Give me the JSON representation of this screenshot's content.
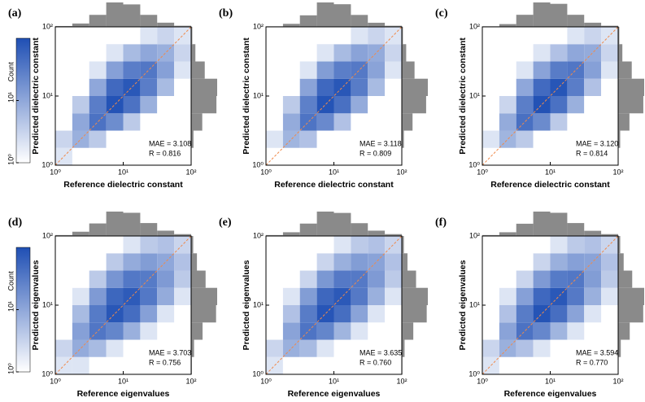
{
  "chart_data": [
    {
      "type": "hist2d",
      "label": "(a)",
      "xlabel": "Reference dielectric constant",
      "ylabel": "Predicted dielectric constant",
      "annotations": [
        "MAE = 3.108",
        "R = 0.816"
      ],
      "log": true,
      "xlim": [
        1,
        100
      ],
      "ylim": [
        1,
        100
      ],
      "xticks": [
        {
          "value": 1,
          "label": "10⁰"
        },
        {
          "value": 10,
          "label": "10¹"
        },
        {
          "value": 100,
          "label": "10²"
        }
      ],
      "yticks": [
        {
          "value": 1,
          "label": "10⁰"
        },
        {
          "value": 10,
          "label": "10¹"
        },
        {
          "value": 100,
          "label": "10²"
        }
      ],
      "bins": [
        1,
        1.78,
        3.16,
        5.62,
        10,
        17.8,
        31.6,
        56.2,
        100
      ],
      "counts": [
        [
          2,
          1,
          0,
          0,
          0,
          0,
          0,
          0
        ],
        [
          3,
          8,
          4,
          1,
          0,
          0,
          0,
          0
        ],
        [
          1,
          10,
          40,
          20,
          4,
          1,
          0,
          0
        ],
        [
          0,
          4,
          30,
          90,
          40,
          8,
          1,
          0
        ],
        [
          0,
          1,
          10,
          50,
          80,
          30,
          6,
          1
        ],
        [
          0,
          0,
          2,
          12,
          30,
          35,
          12,
          2
        ],
        [
          0,
          0,
          0,
          2,
          6,
          10,
          8,
          3
        ],
        [
          0,
          0,
          0,
          0,
          1,
          2,
          3,
          2
        ]
      ],
      "x_counts": [
        6,
        24,
        86,
        175,
        161,
        86,
        30,
        8
      ],
      "y_counts": [
        3,
        16,
        76,
        173,
        178,
        93,
        29,
        8
      ],
      "cmap": [
        "#ffffff",
        "#1f4fb4"
      ],
      "hist_color": "#8a8a8a",
      "line_color": "#f08a4b",
      "colorbar": {
        "label": "Count",
        "lim": [
          1,
          100
        ],
        "ticks": [
          {
            "value": 1,
            "label": "10⁰"
          },
          {
            "value": 10,
            "label": "10¹"
          }
        ]
      }
    },
    {
      "type": "hist2d",
      "label": "(b)",
      "xlabel": "Reference dielectric constant",
      "ylabel": "Predicted dielectric constant",
      "annotations": [
        "MAE = 3.118",
        "R = 0.809"
      ],
      "log": true,
      "xlim": [
        1,
        100
      ],
      "ylim": [
        1,
        100
      ],
      "xticks": [
        {
          "value": 1,
          "label": "10⁰"
        },
        {
          "value": 10,
          "label": "10¹"
        },
        {
          "value": 100,
          "label": "10²"
        }
      ],
      "yticks": [
        {
          "value": 1,
          "label": "10⁰"
        },
        {
          "value": 10,
          "label": "10¹"
        },
        {
          "value": 100,
          "label": "10²"
        }
      ],
      "bins": [
        1,
        1.78,
        3.16,
        5.62,
        10,
        17.8,
        31.6,
        56.2,
        100
      ],
      "counts": [
        [
          1,
          1,
          0,
          0,
          0,
          0,
          0,
          0
        ],
        [
          2,
          7,
          5,
          1,
          0,
          0,
          0,
          0
        ],
        [
          1,
          9,
          38,
          22,
          5,
          1,
          0,
          0
        ],
        [
          0,
          4,
          28,
          88,
          42,
          9,
          1,
          0
        ],
        [
          0,
          1,
          11,
          52,
          82,
          31,
          6,
          1
        ],
        [
          0,
          0,
          2,
          13,
          29,
          33,
          11,
          2
        ],
        [
          0,
          0,
          0,
          2,
          6,
          11,
          9,
          3
        ],
        [
          0,
          0,
          0,
          0,
          1,
          2,
          3,
          2
        ]
      ],
      "x_counts": [
        4,
        22,
        84,
        178,
        165,
        87,
        30,
        8
      ],
      "y_counts": [
        2,
        15,
        76,
        172,
        184,
        90,
        31,
        8
      ],
      "cmap": [
        "#ffffff",
        "#1f4fb4"
      ],
      "hist_color": "#8a8a8a",
      "line_color": "#f08a4b"
    },
    {
      "type": "hist2d",
      "label": "(c)",
      "xlabel": "Reference dielectric constant",
      "ylabel": "Predicted dielectric constant",
      "annotations": [
        "MAE = 3.120",
        "R = 0.814"
      ],
      "log": true,
      "xlim": [
        1,
        100
      ],
      "ylim": [
        1,
        100
      ],
      "xticks": [
        {
          "value": 1,
          "label": "10⁰"
        },
        {
          "value": 10,
          "label": "10¹"
        },
        {
          "value": 100,
          "label": "10²"
        }
      ],
      "yticks": [
        {
          "value": 1,
          "label": "10⁰"
        },
        {
          "value": 10,
          "label": "10¹"
        },
        {
          "value": 100,
          "label": "10²"
        }
      ],
      "bins": [
        1,
        1.78,
        3.16,
        5.62,
        10,
        17.8,
        31.6,
        56.2,
        100
      ],
      "counts": [
        [
          1,
          0,
          0,
          0,
          0,
          0,
          0,
          0
        ],
        [
          2,
          7,
          4,
          1,
          0,
          0,
          0,
          0
        ],
        [
          1,
          9,
          42,
          21,
          4,
          1,
          0,
          0
        ],
        [
          0,
          3,
          29,
          92,
          41,
          8,
          1,
          0
        ],
        [
          0,
          1,
          10,
          49,
          84,
          30,
          5,
          1
        ],
        [
          0,
          0,
          2,
          11,
          31,
          36,
          12,
          2
        ],
        [
          0,
          0,
          0,
          2,
          5,
          10,
          9,
          3
        ],
        [
          0,
          0,
          0,
          0,
          1,
          2,
          3,
          2
        ]
      ],
      "x_counts": [
        4,
        20,
        87,
        176,
        166,
        87,
        30,
        8
      ],
      "y_counts": [
        1,
        14,
        78,
        174,
        180,
        94,
        29,
        8
      ],
      "cmap": [
        "#ffffff",
        "#1f4fb4"
      ],
      "hist_color": "#8a8a8a",
      "line_color": "#f08a4b"
    },
    {
      "type": "hist2d",
      "label": "(d)",
      "xlabel": "Reference eigenvalues",
      "ylabel": "Predicted eigenvalues",
      "annotations": [
        "MAE = 3.703",
        "R = 0.756"
      ],
      "log": true,
      "xlim": [
        1,
        100
      ],
      "ylim": [
        1,
        100
      ],
      "xticks": [
        {
          "value": 1,
          "label": "10⁰"
        },
        {
          "value": 10,
          "label": "10¹"
        },
        {
          "value": 100,
          "label": "10²"
        }
      ],
      "yticks": [
        {
          "value": 1,
          "label": "10⁰"
        },
        {
          "value": 10,
          "label": "10¹"
        },
        {
          "value": 100,
          "label": "10²"
        }
      ],
      "bins": [
        1,
        1.78,
        3.16,
        5.62,
        10,
        17.8,
        31.6,
        56.2,
        100
      ],
      "counts": [
        [
          2,
          2,
          1,
          0,
          0,
          0,
          0,
          0
        ],
        [
          3,
          9,
          6,
          2,
          1,
          0,
          0,
          0
        ],
        [
          1,
          12,
          36,
          24,
          8,
          2,
          0,
          0
        ],
        [
          1,
          6,
          32,
          82,
          46,
          12,
          2,
          0
        ],
        [
          0,
          2,
          14,
          54,
          74,
          34,
          9,
          2
        ],
        [
          0,
          1,
          4,
          16,
          34,
          32,
          14,
          4
        ],
        [
          0,
          0,
          1,
          4,
          9,
          13,
          10,
          5
        ],
        [
          0,
          0,
          0,
          1,
          2,
          4,
          5,
          3
        ]
      ],
      "x_counts": [
        7,
        32,
        94,
        183,
        174,
        97,
        40,
        14
      ],
      "y_counts": [
        5,
        21,
        83,
        181,
        189,
        105,
        42,
        15
      ],
      "cmap": [
        "#ffffff",
        "#1f4fb4"
      ],
      "hist_color": "#8a8a8a",
      "line_color": "#f08a4b",
      "colorbar": {
        "label": "Count",
        "lim": [
          1,
          100
        ],
        "ticks": [
          {
            "value": 1,
            "label": "10⁰"
          },
          {
            "value": 10,
            "label": "10¹"
          }
        ]
      }
    },
    {
      "type": "hist2d",
      "label": "(e)",
      "xlabel": "Reference eigenvalues",
      "ylabel": "Predicted eigenvalues",
      "annotations": [
        "MAE = 3.635",
        "R = 0.760"
      ],
      "log": true,
      "xlim": [
        1,
        100
      ],
      "ylim": [
        1,
        100
      ],
      "xticks": [
        {
          "value": 1,
          "label": "10⁰"
        },
        {
          "value": 10,
          "label": "10¹"
        },
        {
          "value": 100,
          "label": "10²"
        }
      ],
      "yticks": [
        {
          "value": 1,
          "label": "10⁰"
        },
        {
          "value": 10,
          "label": "10¹"
        },
        {
          "value": 100,
          "label": "10²"
        }
      ],
      "bins": [
        1,
        1.78,
        3.16,
        5.62,
        10,
        17.8,
        31.6,
        56.2,
        100
      ],
      "counts": [
        [
          2,
          1,
          1,
          0,
          0,
          0,
          0,
          0
        ],
        [
          3,
          8,
          6,
          2,
          1,
          0,
          0,
          0
        ],
        [
          1,
          11,
          38,
          24,
          7,
          2,
          0,
          0
        ],
        [
          1,
          5,
          31,
          85,
          45,
          11,
          2,
          0
        ],
        [
          0,
          2,
          13,
          53,
          77,
          33,
          8,
          2
        ],
        [
          0,
          1,
          3,
          15,
          33,
          33,
          14,
          4
        ],
        [
          0,
          0,
          1,
          3,
          8,
          13,
          11,
          5
        ],
        [
          0,
          0,
          0,
          1,
          2,
          4,
          5,
          3
        ]
      ],
      "x_counts": [
        7,
        28,
        93,
        183,
        173,
        96,
        40,
        14
      ],
      "y_counts": [
        4,
        20,
        83,
        180,
        188,
        103,
        41,
        15
      ],
      "cmap": [
        "#ffffff",
        "#1f4fb4"
      ],
      "hist_color": "#8a8a8a",
      "line_color": "#f08a4b"
    },
    {
      "type": "hist2d",
      "label": "(f)",
      "xlabel": "Reference eigenvalues",
      "ylabel": "Predicted eigenvalues",
      "annotations": [
        "MAE = 3.594",
        "R = 0.770"
      ],
      "log": true,
      "xlim": [
        1,
        100
      ],
      "ylim": [
        1,
        100
      ],
      "xticks": [
        {
          "value": 1,
          "label": "10⁰"
        },
        {
          "value": 10,
          "label": "10¹"
        },
        {
          "value": 100,
          "label": "10²"
        }
      ],
      "yticks": [
        {
          "value": 1,
          "label": "10⁰"
        },
        {
          "value": 10,
          "label": "10¹"
        },
        {
          "value": 100,
          "label": "10²"
        }
      ],
      "bins": [
        1,
        1.78,
        3.16,
        5.62,
        10,
        17.8,
        31.6,
        56.2,
        100
      ],
      "counts": [
        [
          2,
          1,
          0,
          0,
          0,
          0,
          0,
          0
        ],
        [
          3,
          8,
          5,
          2,
          1,
          0,
          0,
          0
        ],
        [
          1,
          11,
          40,
          23,
          7,
          2,
          0,
          0
        ],
        [
          1,
          5,
          31,
          88,
          44,
          11,
          2,
          0
        ],
        [
          0,
          2,
          12,
          52,
          80,
          33,
          8,
          2
        ],
        [
          0,
          1,
          3,
          14,
          32,
          35,
          13,
          4
        ],
        [
          0,
          0,
          1,
          3,
          8,
          12,
          11,
          5
        ],
        [
          0,
          0,
          0,
          1,
          2,
          4,
          5,
          3
        ]
      ],
      "x_counts": [
        7,
        28,
        92,
        183,
        174,
        97,
        39,
        14
      ],
      "y_counts": [
        3,
        19,
        84,
        182,
        189,
        102,
        40,
        15
      ],
      "cmap": [
        "#ffffff",
        "#1f4fb4"
      ],
      "hist_color": "#8a8a8a",
      "line_color": "#f08a4b"
    }
  ]
}
